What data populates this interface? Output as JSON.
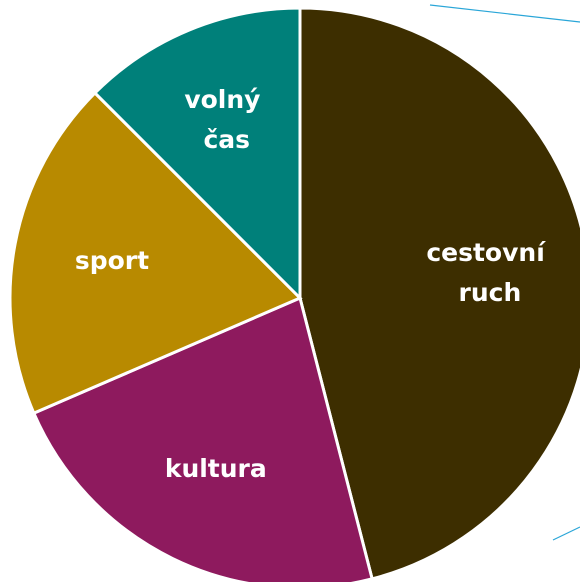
{
  "chart_data": {
    "type": "pie",
    "categories": [
      "cestovní ruch",
      "kultura",
      "sport",
      "volný čas"
    ],
    "values": [
      46,
      22.5,
      19,
      12.5
    ],
    "colors": [
      "#3d2e00",
      "#8e1a5e",
      "#b88a00",
      "#00807a"
    ],
    "start_angle": 0,
    "direction": "clockwise"
  }
}
